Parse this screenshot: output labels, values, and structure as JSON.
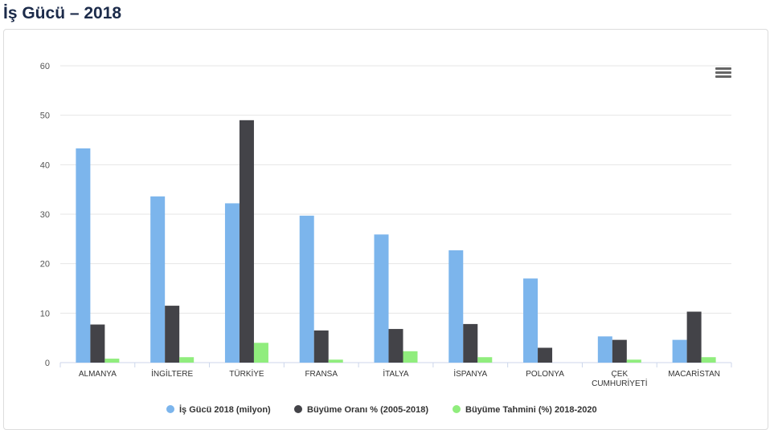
{
  "page": {
    "title": "İş Gücü – 2018"
  },
  "toolbar": {
    "menu_icon": "hamburger-menu-icon"
  },
  "chart_data": {
    "type": "bar",
    "categories": [
      [
        "ALMANYA"
      ],
      [
        "İNGİLTERE"
      ],
      [
        "TÜRKİYE"
      ],
      [
        "FRANSA"
      ],
      [
        "İTALYA"
      ],
      [
        "İSPANYA"
      ],
      [
        "POLONYA"
      ],
      [
        "ÇEK",
        "CUMHURİYETİ"
      ],
      [
        "MACARİSTAN"
      ]
    ],
    "series": [
      {
        "name": "İş Gücü 2018 (milyon)",
        "color": "#7cb5ec",
        "values": [
          43.3,
          33.6,
          32.2,
          29.7,
          25.9,
          22.7,
          17.0,
          5.3,
          4.6
        ]
      },
      {
        "name": "Büyüme Oranı % (2005-2018)",
        "color": "#434348",
        "values": [
          7.7,
          11.5,
          49.0,
          6.5,
          6.8,
          7.8,
          3.0,
          4.6,
          10.3
        ]
      },
      {
        "name": "Büyüme Tahmini (%) 2018-2020",
        "color": "#90ed7d",
        "values": [
          0.8,
          1.1,
          4.0,
          0.6,
          2.3,
          1.1,
          0.0,
          0.6,
          1.1
        ]
      }
    ],
    "ylim": [
      0,
      60
    ],
    "yticks": [
      0,
      10,
      20,
      30,
      40,
      50,
      60
    ],
    "grid": true,
    "legend_position": "bottom-center"
  }
}
